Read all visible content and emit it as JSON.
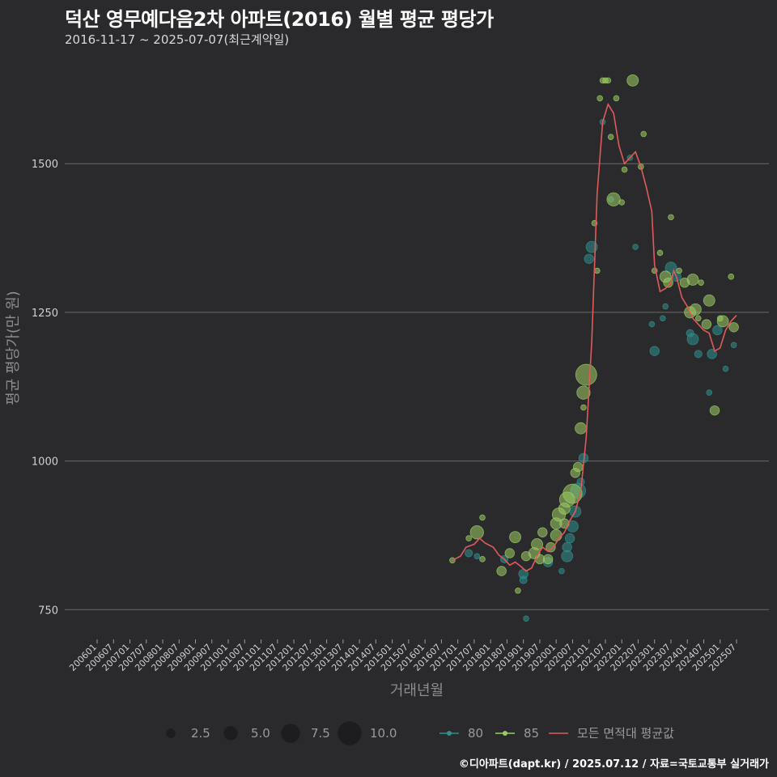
{
  "title": "덕산 영무예다음2차 아파트(2016) 월별 평균 평당가",
  "subtitle": "2016-11-17 ~ 2025-07-07(최근계약일)",
  "credit": "©디아파트(dapt.kr) / 2025.07.12 / 자료=국토교통부 실거래가",
  "colors": {
    "background": "#2a2a2c",
    "grid": "#6a6a6a",
    "series_80": "#2f8f8f",
    "series_85": "#9ccc65",
    "avg_line": "#e05a5a"
  },
  "chart_data": {
    "type": "scatter",
    "xlabel": "거래년월",
    "ylabel": "평균 평당가(만 원)",
    "ylim": [
      700,
      1680
    ],
    "y_ticks": [
      750,
      1000,
      1250,
      1500
    ],
    "y_tick_labels": [
      "750",
      "1000",
      "1250",
      "1500"
    ],
    "x_ticks": [
      "200601",
      "200607",
      "200701",
      "200707",
      "200801",
      "200807",
      "200901",
      "200907",
      "201001",
      "201007",
      "201101",
      "201107",
      "201201",
      "201207",
      "201301",
      "201307",
      "201401",
      "201407",
      "201501",
      "201507",
      "201601",
      "201607",
      "201701",
      "201707",
      "201801",
      "201807",
      "201901",
      "201907",
      "202001",
      "202007",
      "202101",
      "202107",
      "202201",
      "202207",
      "202301",
      "202307",
      "202401",
      "202407",
      "202501",
      "202507"
    ],
    "size_legend": {
      "values": [
        2.5,
        5.0,
        7.5,
        10.0
      ],
      "labels": [
        "2.5",
        "5.0",
        "7.5",
        "10.0"
      ]
    },
    "color_legend": [
      {
        "name": "80",
        "color": "#2f8f8f"
      },
      {
        "name": "85",
        "color": "#9ccc65"
      },
      {
        "name": "모든 면적대 평균값",
        "color": "#e05a5a"
      }
    ],
    "series": [
      {
        "name": "80",
        "points": [
          [
            "2017-05",
            845,
            2
          ],
          [
            "2017-08",
            840,
            1
          ],
          [
            "2018-06",
            835,
            2
          ],
          [
            "2019-01",
            810,
            3
          ],
          [
            "2019-01",
            800,
            2
          ],
          [
            "2019-02",
            735,
            1
          ],
          [
            "2019-10",
            830,
            3
          ],
          [
            "2020-03",
            815,
            1
          ],
          [
            "2020-05",
            840,
            4
          ],
          [
            "2020-05",
            855,
            3
          ],
          [
            "2020-06",
            870,
            3
          ],
          [
            "2020-07",
            890,
            4
          ],
          [
            "2020-08",
            915,
            4
          ],
          [
            "2020-09",
            950,
            6
          ],
          [
            "2020-10",
            965,
            2
          ],
          [
            "2020-11",
            1005,
            3
          ],
          [
            "2021-01",
            1340,
            3
          ],
          [
            "2021-02",
            1360,
            4
          ],
          [
            "2021-06",
            1570,
            1
          ],
          [
            "2021-09",
            1440,
            1
          ],
          [
            "2022-04",
            1510,
            1
          ],
          [
            "2022-06",
            1360,
            1
          ],
          [
            "2022-12",
            1230,
            1
          ],
          [
            "2023-01",
            1185,
            3
          ],
          [
            "2023-04",
            1240,
            1
          ],
          [
            "2023-05",
            1260,
            1
          ],
          [
            "2023-07",
            1325,
            4
          ],
          [
            "2023-09",
            1310,
            3
          ],
          [
            "2024-02",
            1215,
            2
          ],
          [
            "2024-03",
            1205,
            4
          ],
          [
            "2024-05",
            1180,
            2
          ],
          [
            "2024-09",
            1115,
            1
          ],
          [
            "2024-10",
            1180,
            3
          ],
          [
            "2024-12",
            1220,
            3
          ],
          [
            "2025-03",
            1155,
            1
          ],
          [
            "2025-06",
            1195,
            1
          ]
        ]
      },
      {
        "name": "85",
        "points": [
          [
            "2016-11",
            833,
            1
          ],
          [
            "2017-05",
            870,
            1
          ],
          [
            "2017-08",
            880,
            5
          ],
          [
            "2017-10",
            905,
            1
          ],
          [
            "2017-10",
            835,
            1
          ],
          [
            "2018-05",
            815,
            3
          ],
          [
            "2018-08",
            845,
            3
          ],
          [
            "2018-10",
            872,
            4
          ],
          [
            "2018-11",
            782,
            1
          ],
          [
            "2019-02",
            840,
            3
          ],
          [
            "2019-05",
            845,
            4
          ],
          [
            "2019-06",
            860,
            4
          ],
          [
            "2019-07",
            835,
            3
          ],
          [
            "2019-08",
            880,
            3
          ],
          [
            "2019-10",
            835,
            3
          ],
          [
            "2019-11",
            855,
            3
          ],
          [
            "2020-01",
            875,
            4
          ],
          [
            "2020-01",
            895,
            4
          ],
          [
            "2020-02",
            910,
            5
          ],
          [
            "2020-04",
            895,
            3
          ],
          [
            "2020-04",
            920,
            4
          ],
          [
            "2020-05",
            935,
            6
          ],
          [
            "2020-07",
            945,
            8
          ],
          [
            "2020-08",
            980,
            3
          ],
          [
            "2020-09",
            990,
            3
          ],
          [
            "2020-10",
            1055,
            4
          ],
          [
            "2020-11",
            1090,
            1
          ],
          [
            "2020-11",
            1115,
            5
          ],
          [
            "2020-12",
            1145,
            9
          ],
          [
            "2021-03",
            1400,
            1
          ],
          [
            "2021-04",
            1320,
            1
          ],
          [
            "2021-05",
            1610,
            1
          ],
          [
            "2021-06",
            1640,
            1
          ],
          [
            "2021-07",
            1640,
            1
          ],
          [
            "2021-08",
            1640,
            1
          ],
          [
            "2021-09",
            1545,
            1
          ],
          [
            "2021-10",
            1440,
            5
          ],
          [
            "2021-11",
            1610,
            1
          ],
          [
            "2022-01",
            1435,
            1
          ],
          [
            "2022-02",
            1490,
            1
          ],
          [
            "2022-05",
            1640,
            4
          ],
          [
            "2022-08",
            1495,
            1
          ],
          [
            "2022-09",
            1550,
            1
          ],
          [
            "2023-01",
            1320,
            1
          ],
          [
            "2023-03",
            1350,
            1
          ],
          [
            "2023-05",
            1310,
            4
          ],
          [
            "2023-06",
            1300,
            3
          ],
          [
            "2023-07",
            1410,
            1
          ],
          [
            "2023-10",
            1320,
            1
          ],
          [
            "2023-12",
            1300,
            3
          ],
          [
            "2024-02",
            1250,
            4
          ],
          [
            "2024-03",
            1305,
            4
          ],
          [
            "2024-04",
            1255,
            4
          ],
          [
            "2024-05",
            1240,
            1
          ],
          [
            "2024-06",
            1300,
            1
          ],
          [
            "2024-08",
            1230,
            3
          ],
          [
            "2024-09",
            1270,
            4
          ],
          [
            "2024-11",
            1085,
            3
          ],
          [
            "2025-01",
            1240,
            1
          ],
          [
            "2025-02",
            1235,
            4
          ],
          [
            "2025-05",
            1310,
            1
          ],
          [
            "2025-06",
            1225,
            3
          ]
        ]
      },
      {
        "name": "모든 면적대 평균값",
        "line": [
          [
            "2016-11",
            833
          ],
          [
            "2017-02",
            840
          ],
          [
            "2017-04",
            855
          ],
          [
            "2017-07",
            860
          ],
          [
            "2017-09",
            870
          ],
          [
            "2017-11",
            862
          ],
          [
            "2018-02",
            855
          ],
          [
            "2018-04",
            842
          ],
          [
            "2018-06",
            835
          ],
          [
            "2018-08",
            825
          ],
          [
            "2018-10",
            830
          ],
          [
            "2018-12",
            823
          ],
          [
            "2019-02",
            815
          ],
          [
            "2019-04",
            820
          ],
          [
            "2019-06",
            840
          ],
          [
            "2019-08",
            855
          ],
          [
            "2019-10",
            848
          ],
          [
            "2019-12",
            855
          ],
          [
            "2020-02",
            870
          ],
          [
            "2020-04",
            880
          ],
          [
            "2020-06",
            900
          ],
          [
            "2020-08",
            915
          ],
          [
            "2020-10",
            950
          ],
          [
            "2020-12",
            1040
          ],
          [
            "2021-02",
            1200
          ],
          [
            "2021-04",
            1450
          ],
          [
            "2021-06",
            1570
          ],
          [
            "2021-08",
            1600
          ],
          [
            "2021-10",
            1585
          ],
          [
            "2021-12",
            1530
          ],
          [
            "2022-02",
            1500
          ],
          [
            "2022-04",
            1510
          ],
          [
            "2022-06",
            1520
          ],
          [
            "2022-08",
            1495
          ],
          [
            "2022-10",
            1460
          ],
          [
            "2022-12",
            1420
          ],
          [
            "2023-01",
            1330
          ],
          [
            "2023-03",
            1285
          ],
          [
            "2023-05",
            1290
          ],
          [
            "2023-07",
            1300
          ],
          [
            "2023-08",
            1320
          ],
          [
            "2023-09",
            1310
          ],
          [
            "2023-11",
            1275
          ],
          [
            "2024-01",
            1260
          ],
          [
            "2024-03",
            1240
          ],
          [
            "2024-05",
            1230
          ],
          [
            "2024-07",
            1220
          ],
          [
            "2024-09",
            1215
          ],
          [
            "2024-11",
            1185
          ],
          [
            "2025-01",
            1190
          ],
          [
            "2025-03",
            1220
          ],
          [
            "2025-05",
            1235
          ],
          [
            "2025-07",
            1245
          ]
        ]
      }
    ]
  }
}
